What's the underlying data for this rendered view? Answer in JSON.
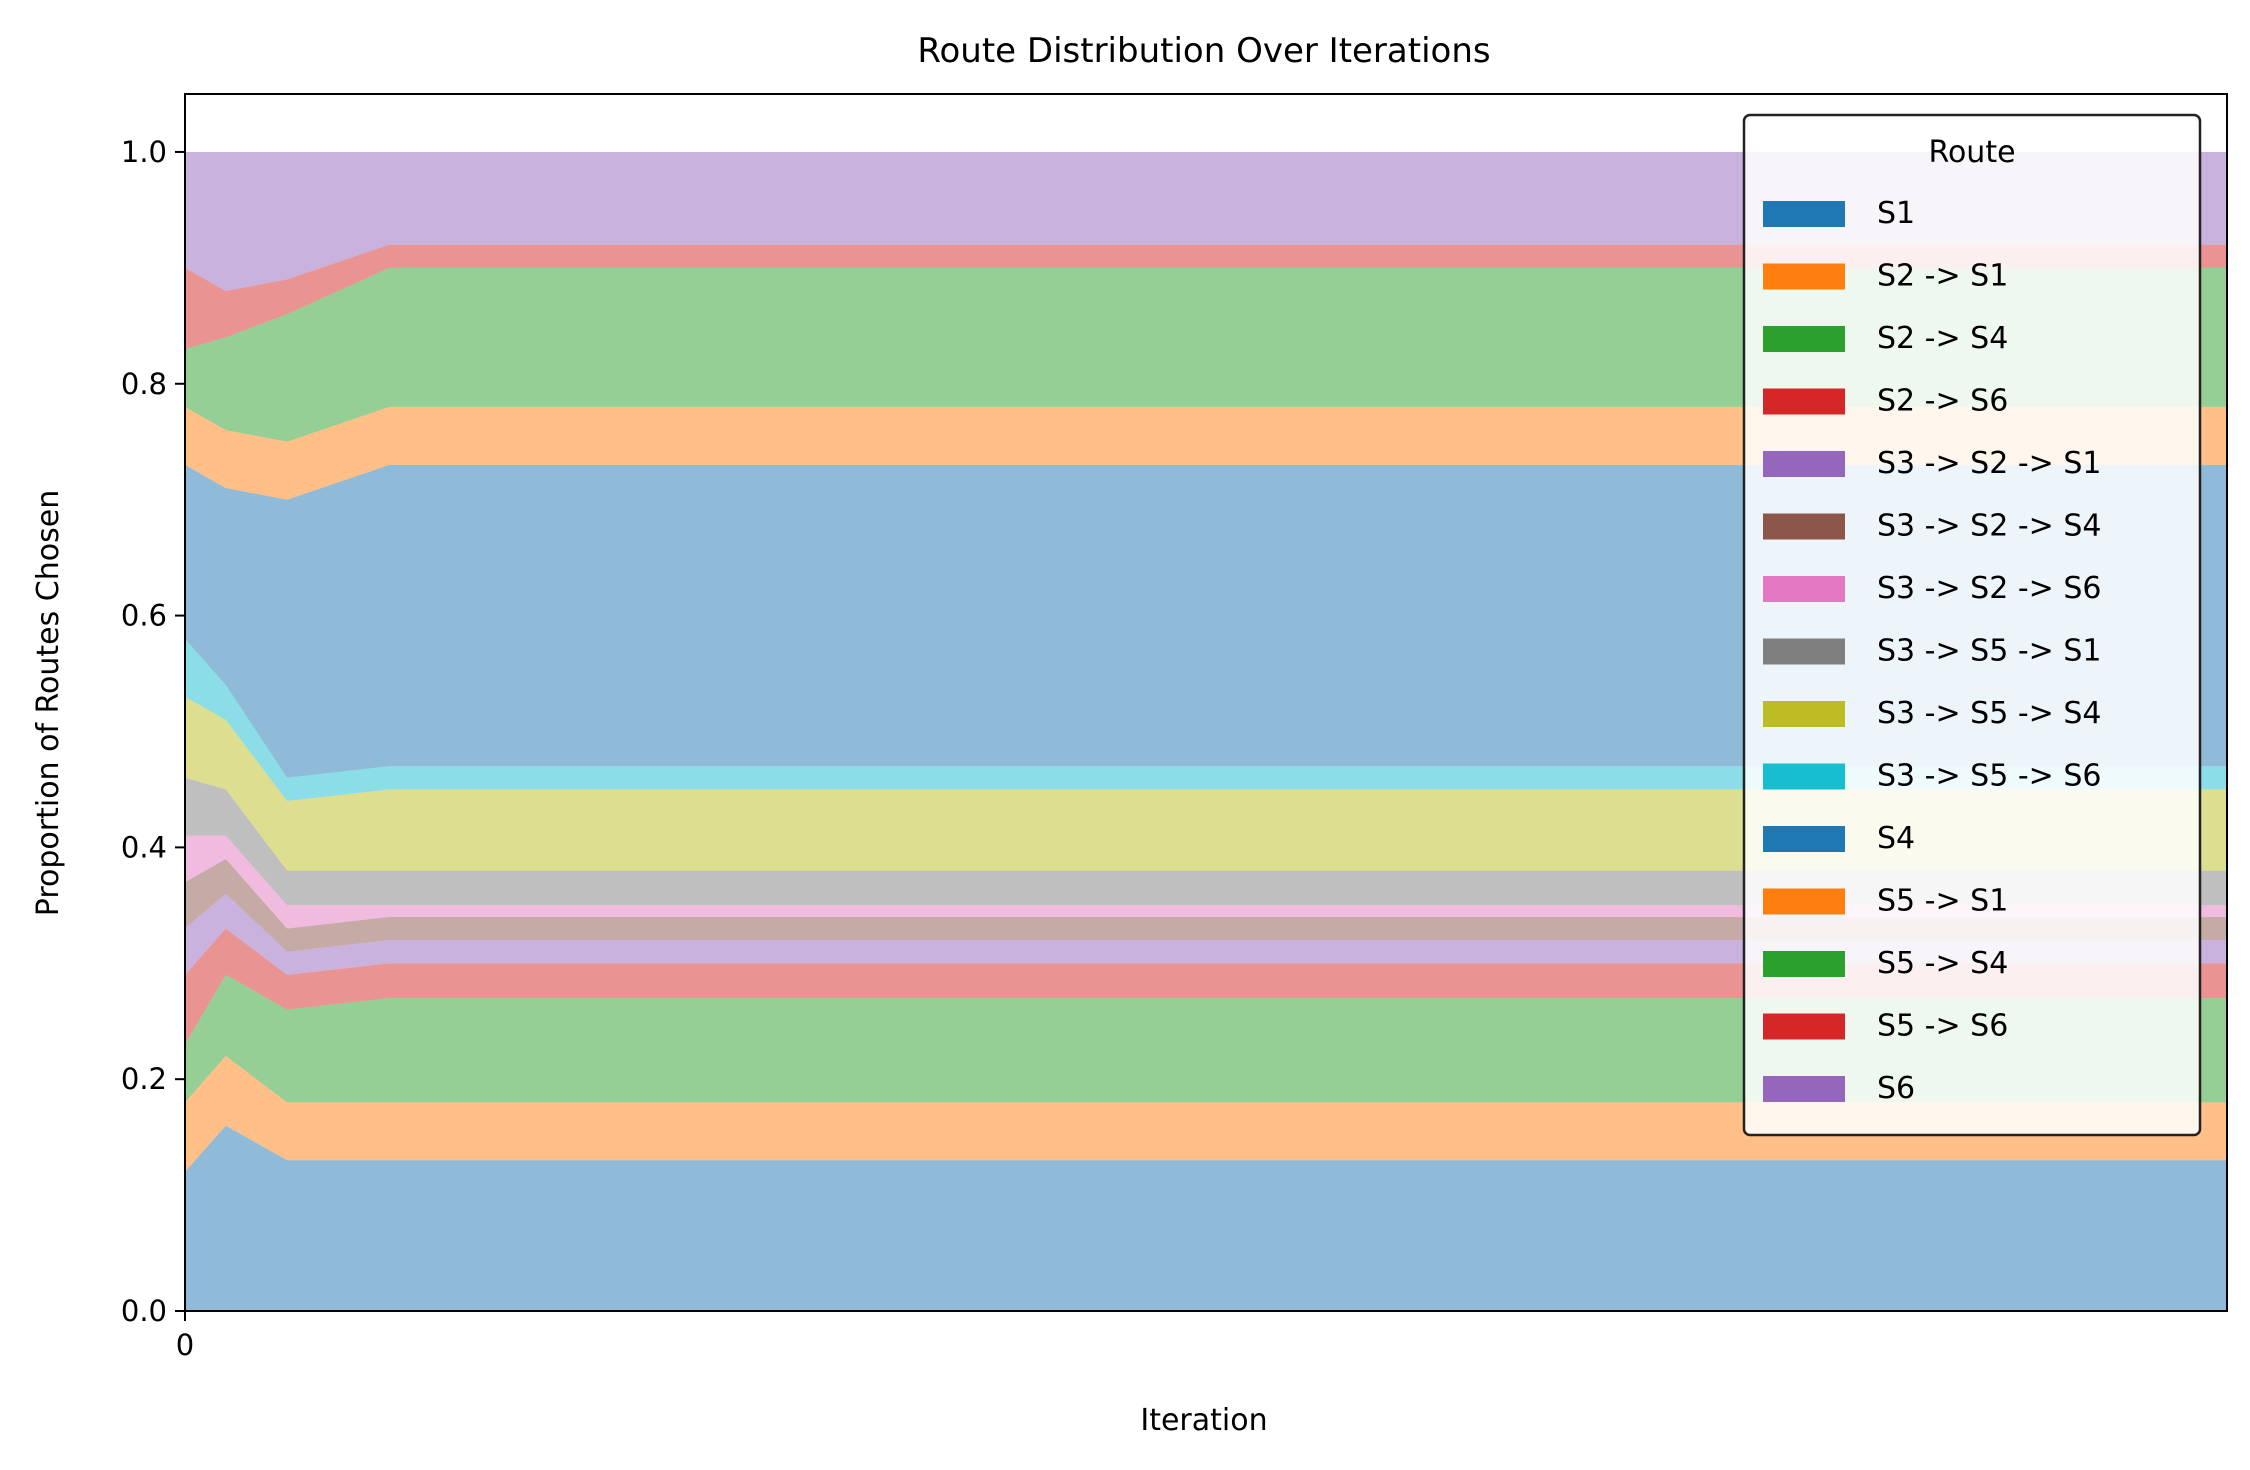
{
  "chart_data": {
    "type": "area",
    "stacked": true,
    "normalized": true,
    "title": "Route Distribution Over Iterations",
    "xlabel": "Iteration",
    "ylabel": "Proportion of Routes Chosen",
    "x_ticks": [
      "0"
    ],
    "x_range_note": "",
    "ylim": [
      0.0,
      1.05
    ],
    "y_ticks": [
      "0.0",
      "0.2",
      "0.4",
      "0.6",
      "0.8",
      "1.0"
    ],
    "grid": false,
    "legend": {
      "title": "Route",
      "placement": "top-right"
    },
    "progress": [
      0.0,
      0.02,
      0.05,
      0.1,
      1.0
    ],
    "series": [
      {
        "name": "S1",
        "color": "#1f77b4",
        "values": [
          0.12,
          0.16,
          0.13,
          0.13,
          0.13
        ]
      },
      {
        "name": "S2 -> S1",
        "color": "#ff7f0e",
        "values": [
          0.06,
          0.06,
          0.05,
          0.05,
          0.05
        ]
      },
      {
        "name": "S2 -> S4",
        "color": "#2ca02c",
        "values": [
          0.05,
          0.07,
          0.08,
          0.09,
          0.09
        ]
      },
      {
        "name": "S2 -> S6",
        "color": "#d62728",
        "values": [
          0.06,
          0.04,
          0.03,
          0.03,
          0.03
        ]
      },
      {
        "name": "S3 -> S2 -> S1",
        "color": "#9467bd",
        "values": [
          0.04,
          0.03,
          0.02,
          0.02,
          0.02
        ]
      },
      {
        "name": "S3 -> S2 -> S4",
        "color": "#8c564b",
        "values": [
          0.04,
          0.03,
          0.02,
          0.02,
          0.02
        ]
      },
      {
        "name": "S3 -> S2 -> S6",
        "color": "#e377c2",
        "values": [
          0.04,
          0.02,
          0.02,
          0.01,
          0.01
        ]
      },
      {
        "name": "S3 -> S5 -> S1",
        "color": "#7f7f7f",
        "values": [
          0.05,
          0.04,
          0.03,
          0.03,
          0.03
        ]
      },
      {
        "name": "S3 -> S5 -> S4",
        "color": "#bcbd22",
        "values": [
          0.07,
          0.06,
          0.06,
          0.07,
          0.07
        ]
      },
      {
        "name": "S3 -> S5 -> S6",
        "color": "#17becf",
        "values": [
          0.05,
          0.03,
          0.02,
          0.02,
          0.02
        ]
      },
      {
        "name": "S4",
        "color": "#1f77b4",
        "values": [
          0.15,
          0.17,
          0.24,
          0.26,
          0.26
        ]
      },
      {
        "name": "S5 -> S1",
        "color": "#ff7f0e",
        "values": [
          0.05,
          0.05,
          0.05,
          0.05,
          0.05
        ]
      },
      {
        "name": "S5 -> S4",
        "color": "#2ca02c",
        "values": [
          0.05,
          0.08,
          0.11,
          0.12,
          0.12
        ]
      },
      {
        "name": "S5 -> S6",
        "color": "#d62728",
        "values": [
          0.07,
          0.04,
          0.03,
          0.02,
          0.02
        ]
      },
      {
        "name": "S6",
        "color": "#9467bd",
        "values": [
          0.1,
          0.12,
          0.11,
          0.08,
          0.08
        ]
      }
    ]
  }
}
